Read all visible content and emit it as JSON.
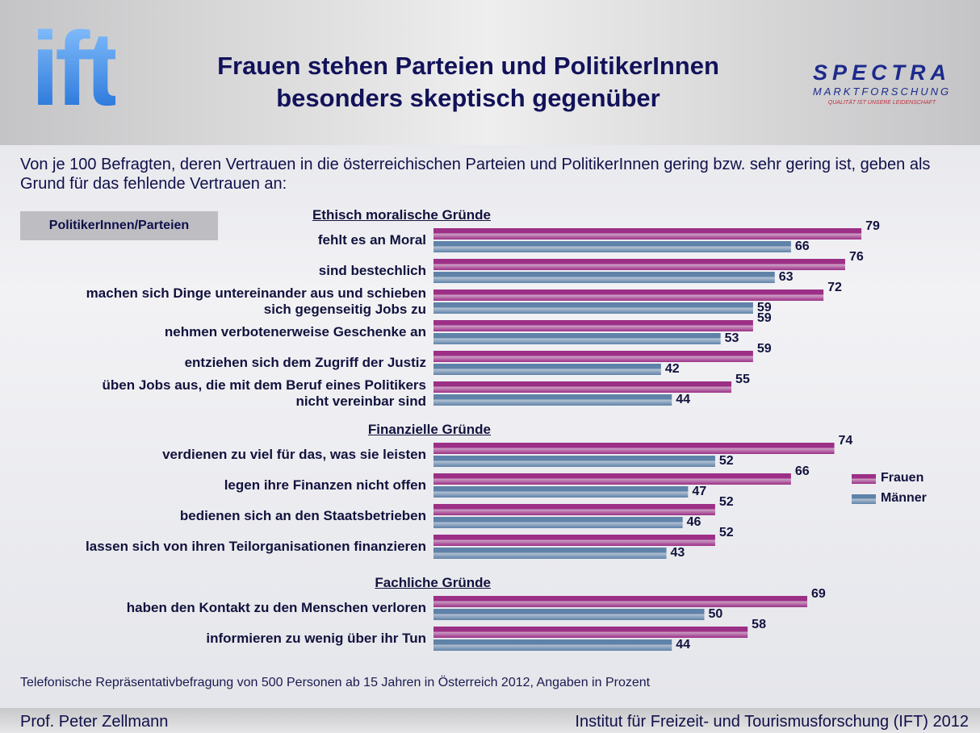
{
  "header": {
    "logo": "ift",
    "title": "Frauen stehen Parteien und PolitikerInnen\nbesonders skeptisch gegenüber",
    "brand": "SPECTRA",
    "brand_sub": "MARKTFORSCHUNG",
    "brand_tagline": "QUALITÄT IST UNSERE LEIDENSCHAFT"
  },
  "chart_data": {
    "type": "bar",
    "orientation": "horizontal",
    "subtitle": "Von je 100 Befragten, deren Vertrauen in die österreichischen Parteien und PolitikerInnen gering bzw. sehr gering ist, geben als Grund für das fehlende Vertrauen an:",
    "panel_label": "PolitikerInnen/Parteien",
    "groups": [
      {
        "name": "Ethisch moralische Gründe",
        "categories": [
          "fehlt es an Moral",
          "sind bestechlich",
          "machen sich Dinge untereinander aus und schieben\nsich gegenseitig Jobs zu",
          "nehmen verbotenerweise Geschenke an",
          "entziehen sich dem Zugriff der Justiz",
          "üben Jobs aus, die mit dem Beruf eines Politikers\nnicht vereinbar sind"
        ]
      },
      {
        "name": "Finanzielle Gründe",
        "categories": [
          "verdienen zu viel für das, was sie leisten",
          "legen ihre Finanzen nicht offen",
          "bedienen sich an den Staatsbetrieben",
          "lassen sich von ihren Teilorganisationen finanzieren"
        ]
      },
      {
        "name": "Fachliche Gründe",
        "categories": [
          "haben den Kontakt zu den Menschen verloren",
          "informieren zu wenig über ihr Tun"
        ]
      }
    ],
    "series": [
      {
        "name": "Frauen",
        "color": "#9c2f86",
        "values": [
          79,
          76,
          72,
          59,
          59,
          55,
          74,
          66,
          52,
          52,
          69,
          58
        ]
      },
      {
        "name": "Männer",
        "color": "#5f82a8",
        "values": [
          66,
          63,
          59,
          53,
          42,
          44,
          52,
          47,
          46,
          43,
          50,
          44
        ]
      }
    ],
    "legend": "right",
    "note": "Telefonische Repräsentativbefragung von 500 Personen ab 15 Jahren in Österreich 2012, Angaben in Prozent"
  },
  "footer": {
    "left": "Prof. Peter Zellmann",
    "right": "Institut für Freizeit- und Tourismusforschung (IFT) 2012"
  }
}
